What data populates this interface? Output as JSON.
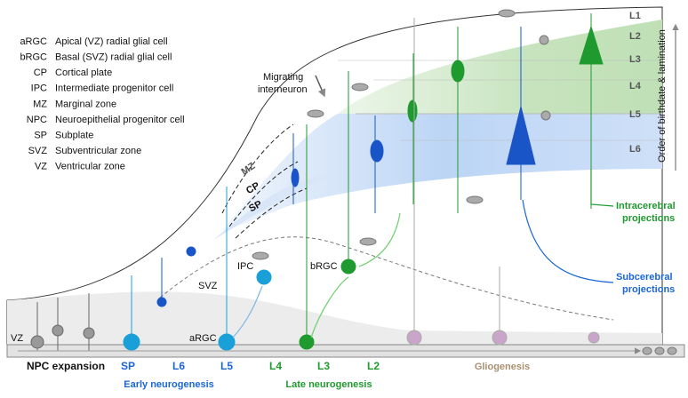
{
  "legend": [
    {
      "abbr": "aRGC",
      "text": "Apical (VZ) radial glial cell"
    },
    {
      "abbr": "bRGC",
      "text": "Basal (SVZ) radial glial cell"
    },
    {
      "abbr": "CP",
      "text": "Cortical plate"
    },
    {
      "abbr": "IPC",
      "text": "Intermediate progenitor cell"
    },
    {
      "abbr": "MZ",
      "text": "Marginal zone"
    },
    {
      "abbr": "NPC",
      "text": "Neuroepithelial progenitor cell"
    },
    {
      "abbr": "SP",
      "text": "Subplate"
    },
    {
      "abbr": "SVZ",
      "text": "Subventricular zone"
    },
    {
      "abbr": "VZ",
      "text": "Ventricular zone"
    }
  ],
  "layers": [
    "L1",
    "L2",
    "L3",
    "L4",
    "L5",
    "L6"
  ],
  "axis_label": "Order of birthdate & lamination",
  "zones": {
    "mz": "MZ",
    "cp": "CP",
    "sp": "SP",
    "svz": "SVZ",
    "vz": "VZ"
  },
  "cells": {
    "interneuron": [
      "Migrating",
      "interneuron"
    ],
    "ipc": "IPC",
    "brgc": "bRGC",
    "argc": "aRGC"
  },
  "projections": {
    "intracerebral": [
      "Intracerebral",
      "projections"
    ],
    "subcerebral": [
      "Subcerebral",
      "projections"
    ]
  },
  "timeline": {
    "npc": "NPC expansion",
    "stages": [
      "SP",
      "L6",
      "L5",
      "L4",
      "L3",
      "L2"
    ],
    "early": "Early neurogenesis",
    "late": "Late neurogenesis",
    "glio": "Gliogenesis"
  }
}
